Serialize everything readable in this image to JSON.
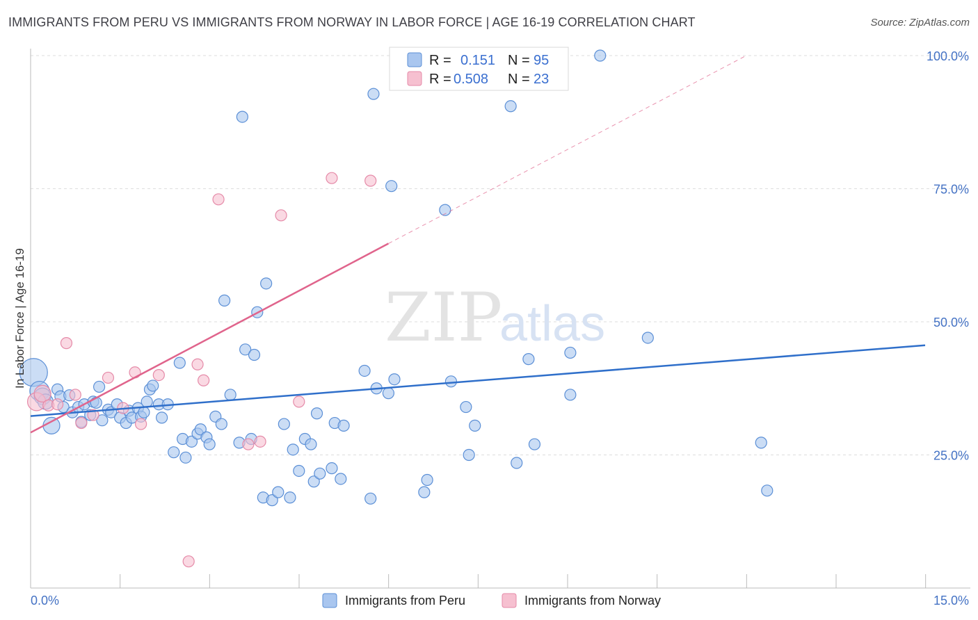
{
  "title": "IMMIGRANTS FROM PERU VS IMMIGRANTS FROM NORWAY IN LABOR FORCE | AGE 16-19 CORRELATION CHART",
  "source": "Source: ZipAtlas.com",
  "watermark": {
    "zip": "ZIP",
    "atlas": "atlas"
  },
  "colors": {
    "peru_fill": "#a9c6ef",
    "peru_stroke": "#5b8fd6",
    "peru_line": "#2f6fca",
    "norway_fill": "#f6c0d0",
    "norway_stroke": "#e58aa8",
    "norway_line": "#e0648c",
    "tick": "#4472c4",
    "grid": "#dddddd"
  },
  "legend": {
    "rows": [
      {
        "r_label": "R =",
        "r_value": "0.151",
        "n_label": "N =",
        "n_value": "95"
      },
      {
        "r_label": "R =",
        "r_value": "0.508",
        "n_label": "N =",
        "n_value": "23"
      }
    ]
  },
  "bottom_legend": [
    "Immigrants from Peru",
    "Immigrants from Norway"
  ],
  "chart_data": {
    "type": "scatter",
    "title": "IMMIGRANTS FROM PERU VS IMMIGRANTS FROM NORWAY IN LABOR FORCE | AGE 16-19 CORRELATION CHART",
    "xlabel": "",
    "ylabel": "In Labor Force | Age 16-19",
    "xlim": [
      0,
      15
    ],
    "ylim": [
      0,
      102
    ],
    "x_tick_labels": [
      "0.0%",
      "15.0%"
    ],
    "y_ticks": [
      25,
      50,
      75,
      100
    ],
    "y_tick_labels": [
      "25.0%",
      "50.0%",
      "75.0%",
      "100.0%"
    ],
    "grid": true,
    "legend_position": "top-center",
    "series": [
      {
        "name": "Immigrants from Peru",
        "R": 0.151,
        "N": 95,
        "trend": {
          "x": [
            0,
            15
          ],
          "y": [
            32.3,
            45.6
          ]
        },
        "points": [
          {
            "x": 0.05,
            "y": 40.5,
            "r": 20
          },
          {
            "x": 0.15,
            "y": 37.0,
            "r": 14
          },
          {
            "x": 0.2,
            "y": 36.0,
            "r": 12
          },
          {
            "x": 0.25,
            "y": 35.0,
            "r": 11
          },
          {
            "x": 0.35,
            "y": 30.5,
            "r": 12
          },
          {
            "x": 0.45,
            "y": 37.3
          },
          {
            "x": 0.5,
            "y": 36.0
          },
          {
            "x": 0.55,
            "y": 34.0
          },
          {
            "x": 0.65,
            "y": 36.2
          },
          {
            "x": 0.7,
            "y": 33.0
          },
          {
            "x": 0.8,
            "y": 34.0
          },
          {
            "x": 0.85,
            "y": 31.2
          },
          {
            "x": 0.9,
            "y": 34.5
          },
          {
            "x": 1.0,
            "y": 32.5
          },
          {
            "x": 1.05,
            "y": 35.0
          },
          {
            "x": 1.1,
            "y": 34.8
          },
          {
            "x": 1.15,
            "y": 37.8
          },
          {
            "x": 1.2,
            "y": 31.5
          },
          {
            "x": 1.3,
            "y": 33.5
          },
          {
            "x": 1.35,
            "y": 33.0
          },
          {
            "x": 1.45,
            "y": 34.5
          },
          {
            "x": 1.5,
            "y": 32.0
          },
          {
            "x": 1.6,
            "y": 31.0
          },
          {
            "x": 1.65,
            "y": 33.3
          },
          {
            "x": 1.7,
            "y": 32.0
          },
          {
            "x": 1.8,
            "y": 33.8
          },
          {
            "x": 1.85,
            "y": 32.2
          },
          {
            "x": 1.9,
            "y": 33.0
          },
          {
            "x": 1.95,
            "y": 35.0
          },
          {
            "x": 2.0,
            "y": 37.3
          },
          {
            "x": 2.05,
            "y": 38.0
          },
          {
            "x": 2.15,
            "y": 34.5
          },
          {
            "x": 2.2,
            "y": 32.0
          },
          {
            "x": 2.3,
            "y": 34.5
          },
          {
            "x": 2.4,
            "y": 25.5
          },
          {
            "x": 2.5,
            "y": 42.3
          },
          {
            "x": 2.55,
            "y": 28.0
          },
          {
            "x": 2.6,
            "y": 24.5
          },
          {
            "x": 2.7,
            "y": 27.5
          },
          {
            "x": 2.8,
            "y": 29.0
          },
          {
            "x": 2.85,
            "y": 29.8
          },
          {
            "x": 2.95,
            "y": 28.3
          },
          {
            "x": 3.0,
            "y": 27.0
          },
          {
            "x": 3.1,
            "y": 32.2
          },
          {
            "x": 3.2,
            "y": 30.8
          },
          {
            "x": 3.25,
            "y": 54.0
          },
          {
            "x": 3.35,
            "y": 36.3
          },
          {
            "x": 3.5,
            "y": 27.3
          },
          {
            "x": 3.55,
            "y": 88.5
          },
          {
            "x": 3.6,
            "y": 44.8
          },
          {
            "x": 3.7,
            "y": 28.0
          },
          {
            "x": 3.75,
            "y": 43.8
          },
          {
            "x": 3.8,
            "y": 51.8
          },
          {
            "x": 3.9,
            "y": 17.0
          },
          {
            "x": 3.95,
            "y": 57.2
          },
          {
            "x": 4.05,
            "y": 16.5
          },
          {
            "x": 4.15,
            "y": 18.0
          },
          {
            "x": 4.25,
            "y": 30.8
          },
          {
            "x": 4.35,
            "y": 17.0
          },
          {
            "x": 4.4,
            "y": 26.0
          },
          {
            "x": 4.5,
            "y": 22.0
          },
          {
            "x": 4.6,
            "y": 28.0
          },
          {
            "x": 4.7,
            "y": 27.0
          },
          {
            "x": 4.75,
            "y": 20.0
          },
          {
            "x": 4.8,
            "y": 32.8
          },
          {
            "x": 4.85,
            "y": 21.5
          },
          {
            "x": 5.05,
            "y": 22.5
          },
          {
            "x": 5.1,
            "y": 31.0
          },
          {
            "x": 5.2,
            "y": 20.5
          },
          {
            "x": 5.25,
            "y": 30.5
          },
          {
            "x": 5.6,
            "y": 40.8
          },
          {
            "x": 5.7,
            "y": 16.8
          },
          {
            "x": 5.75,
            "y": 92.8
          },
          {
            "x": 5.8,
            "y": 37.5
          },
          {
            "x": 6.0,
            "y": 36.6
          },
          {
            "x": 6.05,
            "y": 75.5
          },
          {
            "x": 6.1,
            "y": 39.2
          },
          {
            "x": 6.6,
            "y": 18.0
          },
          {
            "x": 6.65,
            "y": 20.3
          },
          {
            "x": 6.95,
            "y": 71.0
          },
          {
            "x": 7.05,
            "y": 38.8
          },
          {
            "x": 7.3,
            "y": 34.0
          },
          {
            "x": 7.35,
            "y": 25.0
          },
          {
            "x": 7.45,
            "y": 30.5
          },
          {
            "x": 8.05,
            "y": 90.5
          },
          {
            "x": 8.15,
            "y": 23.5
          },
          {
            "x": 8.35,
            "y": 43.0
          },
          {
            "x": 8.45,
            "y": 27.0
          },
          {
            "x": 9.05,
            "y": 44.2
          },
          {
            "x": 9.05,
            "y": 36.3
          },
          {
            "x": 9.55,
            "y": 100.0
          },
          {
            "x": 10.35,
            "y": 47.0
          },
          {
            "x": 12.25,
            "y": 27.3
          },
          {
            "x": 12.35,
            "y": 18.3
          }
        ]
      },
      {
        "name": "Immigrants from Norway",
        "R": 0.508,
        "N": 23,
        "trend": {
          "x": [
            0,
            6.0
          ],
          "y": [
            29.2,
            64.7
          ]
        },
        "trend_dashed": {
          "x": [
            6.0,
            12.0
          ],
          "y": [
            64.7,
            100.0
          ]
        },
        "points": [
          {
            "x": 0.1,
            "y": 35.0,
            "r": 13
          },
          {
            "x": 0.2,
            "y": 36.5,
            "r": 12
          },
          {
            "x": 0.3,
            "y": 34.3
          },
          {
            "x": 0.45,
            "y": 34.5
          },
          {
            "x": 0.6,
            "y": 46.0
          },
          {
            "x": 0.75,
            "y": 36.3
          },
          {
            "x": 0.85,
            "y": 31.0
          },
          {
            "x": 1.05,
            "y": 32.5
          },
          {
            "x": 1.3,
            "y": 39.5
          },
          {
            "x": 1.55,
            "y": 33.8
          },
          {
            "x": 1.75,
            "y": 40.5
          },
          {
            "x": 1.85,
            "y": 30.8
          },
          {
            "x": 2.15,
            "y": 40.0
          },
          {
            "x": 2.65,
            "y": 5.0
          },
          {
            "x": 2.8,
            "y": 42.0
          },
          {
            "x": 2.9,
            "y": 39.0
          },
          {
            "x": 3.15,
            "y": 73.0
          },
          {
            "x": 3.65,
            "y": 27.0
          },
          {
            "x": 3.85,
            "y": 27.5
          },
          {
            "x": 4.2,
            "y": 70.0
          },
          {
            "x": 4.5,
            "y": 35.0
          },
          {
            "x": 5.05,
            "y": 77.0
          },
          {
            "x": 5.7,
            "y": 76.5
          }
        ]
      }
    ]
  }
}
